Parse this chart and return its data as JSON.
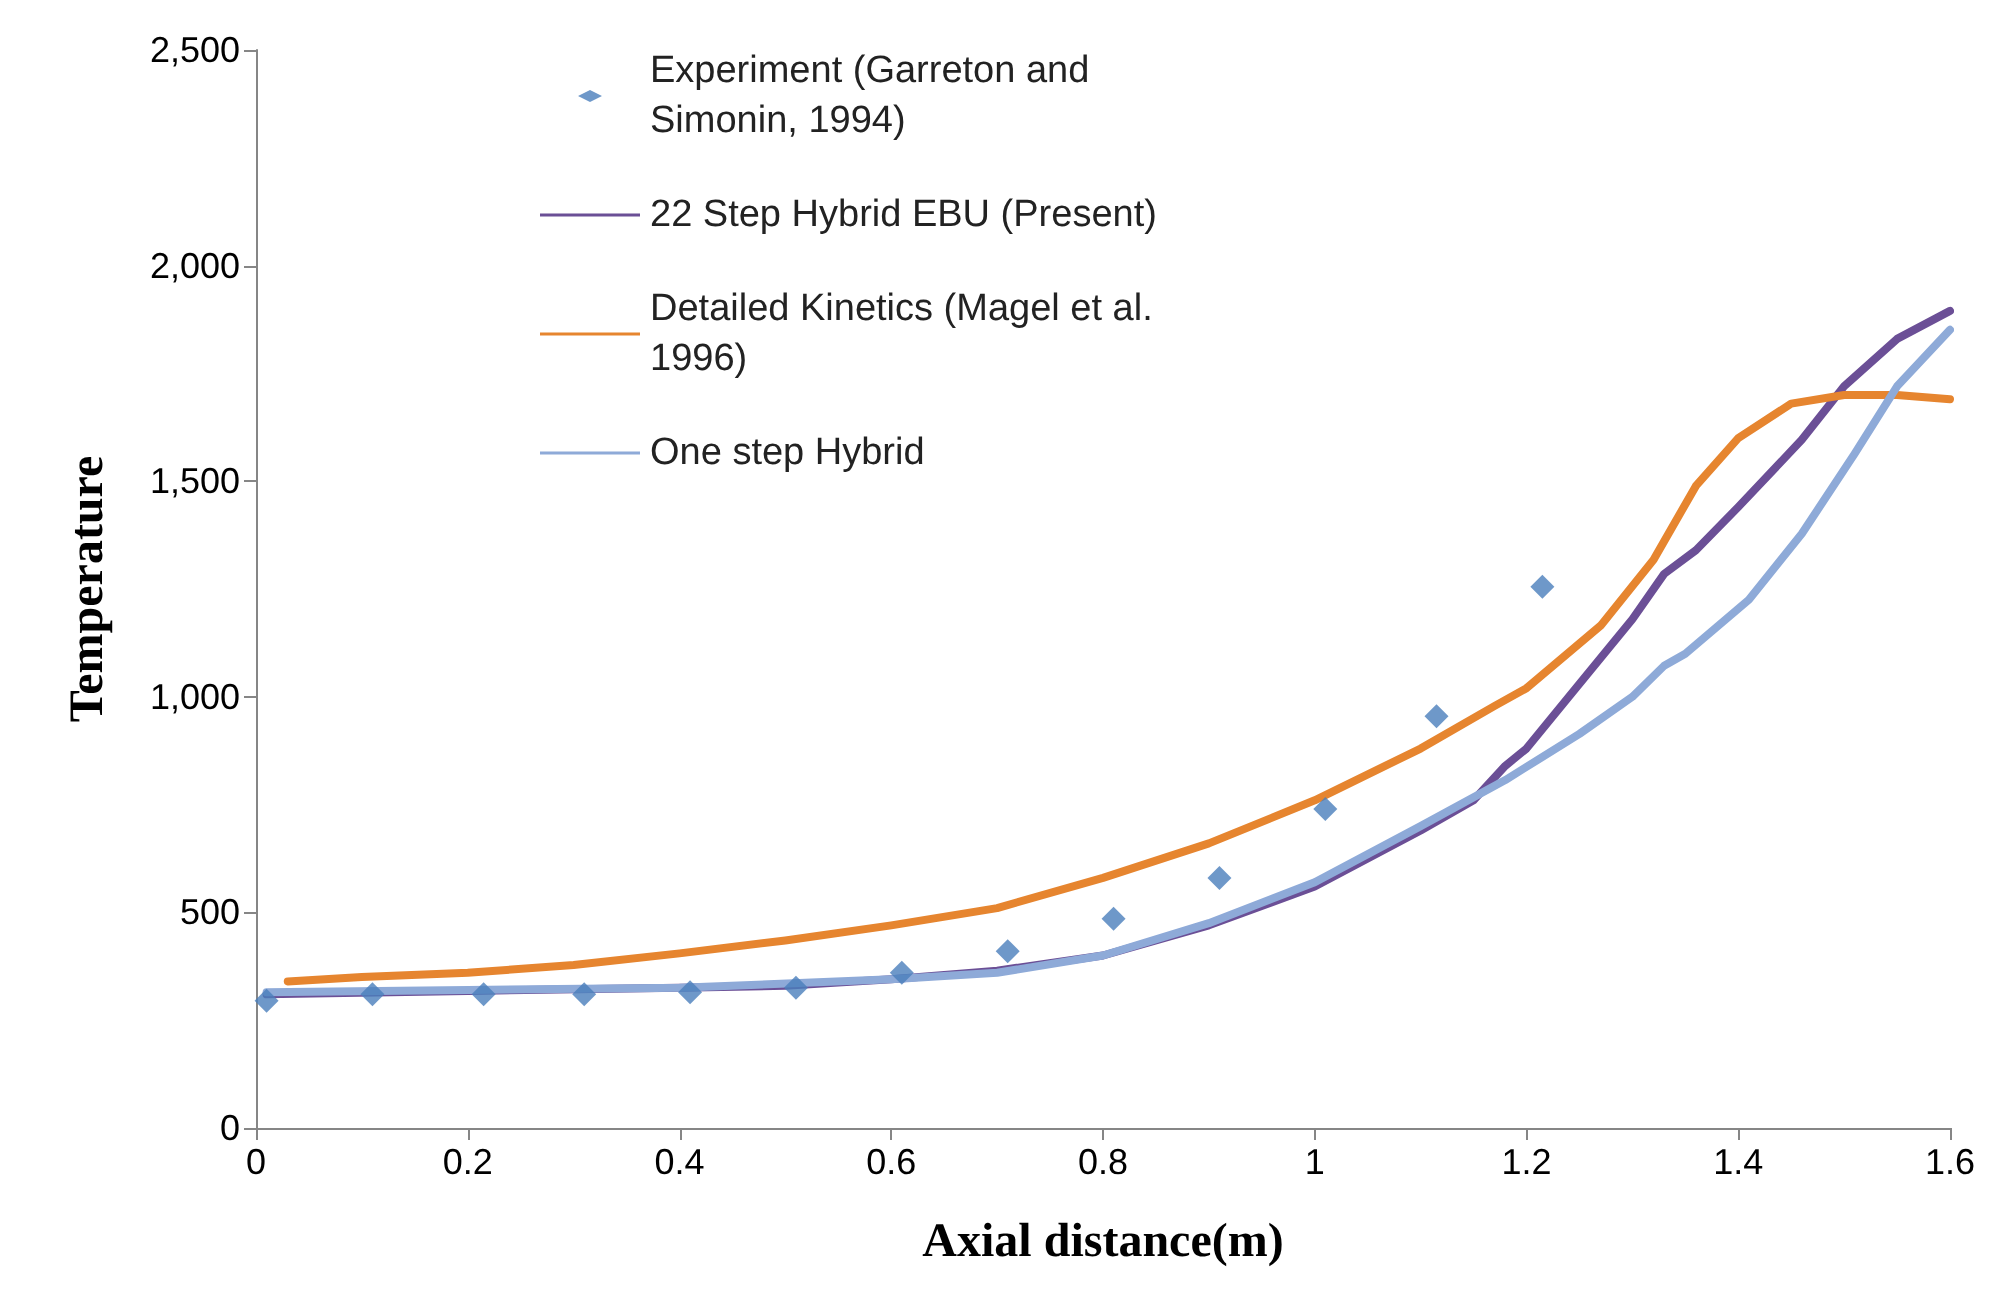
{
  "chart_data": {
    "type": "line",
    "xlabel": "Axial distance(m)",
    "ylabel": "Temperature",
    "xlim": [
      0,
      1.6
    ],
    "xticks": [
      0,
      0.2,
      0.4,
      0.6,
      0.8,
      1,
      1.2,
      1.4,
      1.6
    ],
    "ylim": [
      0,
      2500
    ],
    "yticks": [
      0,
      500,
      {
        "value": 1000,
        "label": "1,000"
      },
      {
        "value": 1500,
        "label": "1,500"
      },
      {
        "value": 2000,
        "label": "2,000"
      },
      {
        "value": 2500,
        "label": "2,500"
      }
    ],
    "grid": false,
    "legend": "top",
    "line_style": "solid",
    "series": [
      {
        "name": "Experiment (Garreton and Simonin, 1994)",
        "type": "scatter",
        "marker": "diamond",
        "color": "#4a7ebb",
        "x": [
          0.01,
          0.11,
          0.215,
          0.31,
          0.41,
          0.51,
          0.61,
          0.71,
          0.81,
          0.91,
          1.01,
          1.115,
          1.215
        ],
        "values": [
          295,
          310,
          310,
          310,
          315,
          325,
          360,
          410,
          485,
          580,
          740,
          955,
          1255
        ]
      },
      {
        "name": "22 Step Hybrid EBU (Present)",
        "marker": "none",
        "color": "#6b4f96",
        "x": [
          0.01,
          0.2,
          0.4,
          0.5,
          0.6,
          0.7,
          0.8,
          0.9,
          1.0,
          1.1,
          1.15,
          1.18,
          1.2,
          1.24,
          1.3,
          1.33,
          1.36,
          1.4,
          1.46,
          1.5,
          1.55,
          1.6
        ],
        "values": [
          310,
          318,
          325,
          330,
          345,
          365,
          400,
          470,
          560,
          690,
          760,
          840,
          880,
          1000,
          1180,
          1285,
          1340,
          1440,
          1596,
          1720,
          1830,
          1895
        ]
      },
      {
        "name": "Detailed Kinetics (Magel et al. 1996)",
        "marker": "none",
        "color": "#e6852f",
        "x": [
          0.03,
          0.1,
          0.2,
          0.3,
          0.4,
          0.5,
          0.6,
          0.7,
          0.8,
          0.9,
          1.0,
          1.1,
          1.17,
          1.2,
          1.27,
          1.32,
          1.36,
          1.4,
          1.45,
          1.5,
          1.55,
          1.6
        ],
        "values": [
          340,
          350,
          360,
          378,
          405,
          435,
          470,
          510,
          580,
          660,
          760,
          880,
          979,
          1020,
          1165,
          1318,
          1489,
          1600,
          1680,
          1700,
          1700,
          1690
        ]
      },
      {
        "name": "One step Hybrid",
        "marker": "none",
        "color": "#8eaad8",
        "x": [
          0.01,
          0.2,
          0.4,
          0.6,
          0.7,
          0.8,
          0.9,
          1.0,
          1.1,
          1.18,
          1.25,
          1.3,
          1.33,
          1.35,
          1.41,
          1.46,
          1.51,
          1.55,
          1.6
        ],
        "values": [
          315,
          320,
          325,
          345,
          360,
          400,
          475,
          570,
          700,
          807,
          914,
          1000,
          1072,
          1100,
          1225,
          1378,
          1564,
          1720,
          1851
        ]
      }
    ]
  }
}
